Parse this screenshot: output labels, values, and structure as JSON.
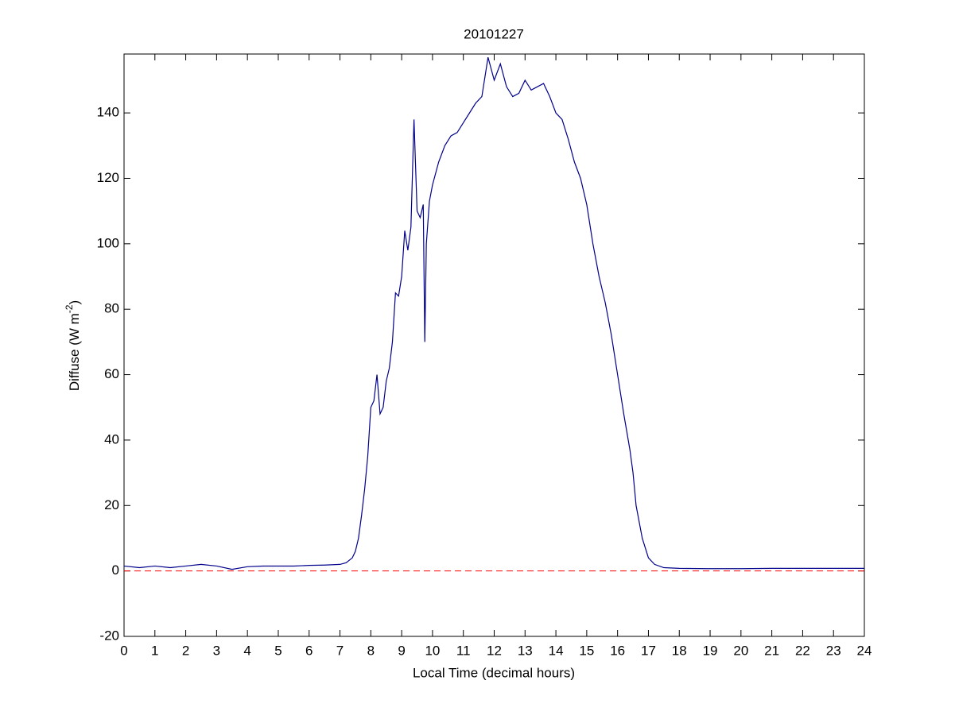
{
  "chart_data": {
    "type": "line",
    "title": "20101227",
    "xlabel": "Local Time (decimal hours)",
    "ylabel": {
      "text": "Diffuse (W m",
      "superscript": "-2",
      "suffix": ")"
    },
    "xlim": [
      0,
      24
    ],
    "ylim": [
      -20,
      158
    ],
    "xticks": [
      0,
      1,
      2,
      3,
      4,
      5,
      6,
      7,
      8,
      9,
      10,
      11,
      12,
      13,
      14,
      15,
      16,
      17,
      18,
      19,
      20,
      21,
      22,
      23,
      24
    ],
    "yticks": [
      -20,
      0,
      20,
      40,
      60,
      80,
      100,
      120,
      140
    ],
    "series": [
      {
        "color": "#00008b",
        "x": [
          0,
          0.5,
          1,
          1.5,
          2,
          2.5,
          3,
          3.5,
          4,
          4.5,
          5,
          5.5,
          6,
          6.5,
          7,
          7.2,
          7.4,
          7.5,
          7.6,
          7.7,
          7.8,
          7.9,
          8,
          8.1,
          8.2,
          8.3,
          8.4,
          8.5,
          8.6,
          8.7,
          8.8,
          8.9,
          9,
          9.1,
          9.2,
          9.3,
          9.4,
          9.5,
          9.6,
          9.7,
          9.75,
          9.8,
          9.9,
          10,
          10.2,
          10.4,
          10.6,
          10.8,
          11,
          11.2,
          11.4,
          11.6,
          11.8,
          12,
          12.2,
          12.4,
          12.6,
          12.8,
          13,
          13.2,
          13.4,
          13.6,
          13.8,
          14,
          14.2,
          14.4,
          14.6,
          14.8,
          15,
          15.2,
          15.4,
          15.6,
          15.8,
          16,
          16.2,
          16.4,
          16.5,
          16.6,
          16.8,
          17,
          17.2,
          17.5,
          18,
          19,
          20,
          21,
          22,
          23,
          24
        ],
        "values": [
          1.5,
          1,
          1.5,
          1,
          1.5,
          2,
          1.5,
          0.5,
          1.3,
          1.5,
          1.5,
          1.5,
          1.7,
          1.8,
          2,
          2.5,
          4,
          6,
          10,
          17,
          25,
          35,
          50,
          52,
          60,
          48,
          50,
          58,
          62,
          70,
          85,
          84,
          90,
          104,
          98,
          105,
          138,
          110,
          108,
          112,
          70,
          100,
          113,
          118,
          125,
          130,
          133,
          134,
          137,
          140,
          143,
          145,
          157,
          150,
          155,
          148,
          145,
          146,
          150,
          147,
          148,
          149,
          145,
          140,
          138,
          132,
          125,
          120,
          112,
          100,
          90,
          82,
          72,
          60,
          48,
          37,
          30,
          20,
          10,
          4,
          2,
          1,
          0.8,
          0.7,
          0.7,
          0.8,
          0.8,
          0.8,
          0.8
        ]
      }
    ],
    "reference_lines": [
      {
        "y": 0,
        "color": "#ff0000",
        "dashed": true
      }
    ]
  }
}
